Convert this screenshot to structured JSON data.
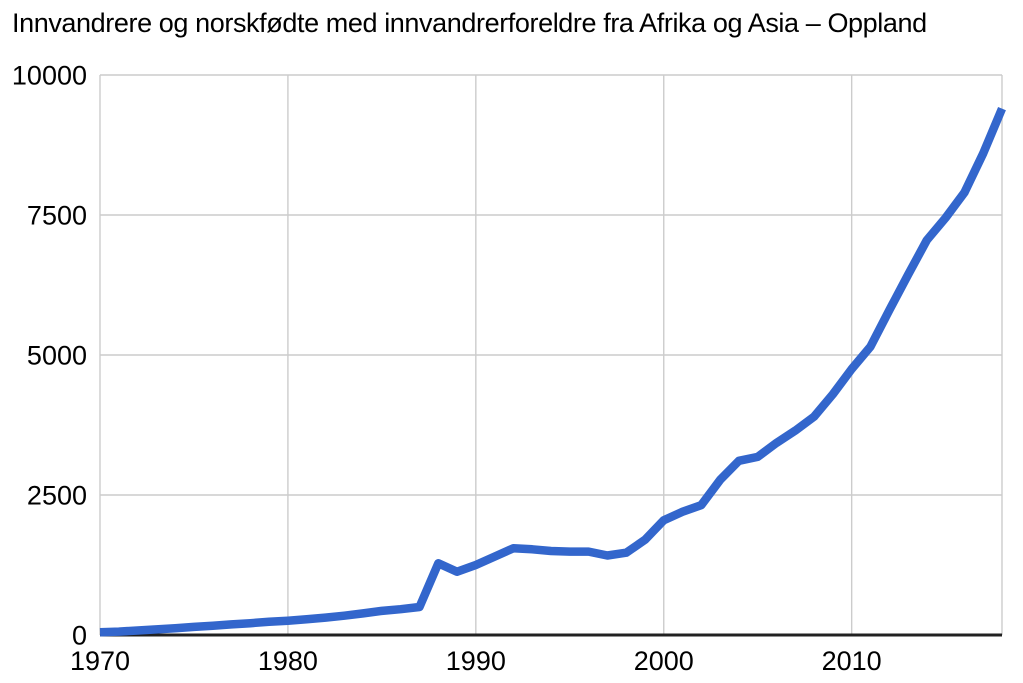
{
  "chart_data": {
    "type": "line",
    "title": "Innvandrere og norskfødte med innvandrerforeldre fra Afrika og Asia – Oppland",
    "xlabel": "",
    "ylabel": "",
    "xlim": [
      1970,
      2018
    ],
    "ylim": [
      0,
      10000
    ],
    "xticks": [
      1970,
      1980,
      1990,
      2000,
      2010
    ],
    "yticks": [
      0,
      2500,
      5000,
      7500,
      10000
    ],
    "grid": true,
    "legend_position": "none",
    "series": [
      {
        "name": "Innvandrere og norskfødte med innvandrerforeldre fra Afrika og Asia – Oppland",
        "x": [
          1970,
          1971,
          1972,
          1973,
          1974,
          1975,
          1976,
          1977,
          1978,
          1979,
          1980,
          1981,
          1982,
          1983,
          1984,
          1985,
          1986,
          1987,
          1988,
          1989,
          1990,
          1991,
          1992,
          1993,
          1994,
          1995,
          1996,
          1997,
          1998,
          1999,
          2000,
          2001,
          2002,
          2003,
          2004,
          2005,
          2006,
          2007,
          2008,
          2009,
          2010,
          2011,
          2012,
          2013,
          2014,
          2015,
          2016,
          2017,
          2018
        ],
        "values": [
          50,
          60,
          80,
          100,
          120,
          145,
          165,
          190,
          210,
          235,
          255,
          280,
          310,
          345,
          385,
          430,
          460,
          500,
          1280,
          1130,
          1250,
          1400,
          1550,
          1530,
          1500,
          1490,
          1490,
          1420,
          1470,
          1700,
          2050,
          2200,
          2320,
          2770,
          3110,
          3180,
          3430,
          3650,
          3900,
          4300,
          4750,
          5150,
          5800,
          6430,
          7050,
          7450,
          7900,
          8600,
          9400
        ]
      }
    ],
    "colors": {
      "line": "#3366cc",
      "gridline": "#cccccc",
      "axis_baseline": "#212121",
      "text": "#000000",
      "background": "#ffffff"
    }
  }
}
